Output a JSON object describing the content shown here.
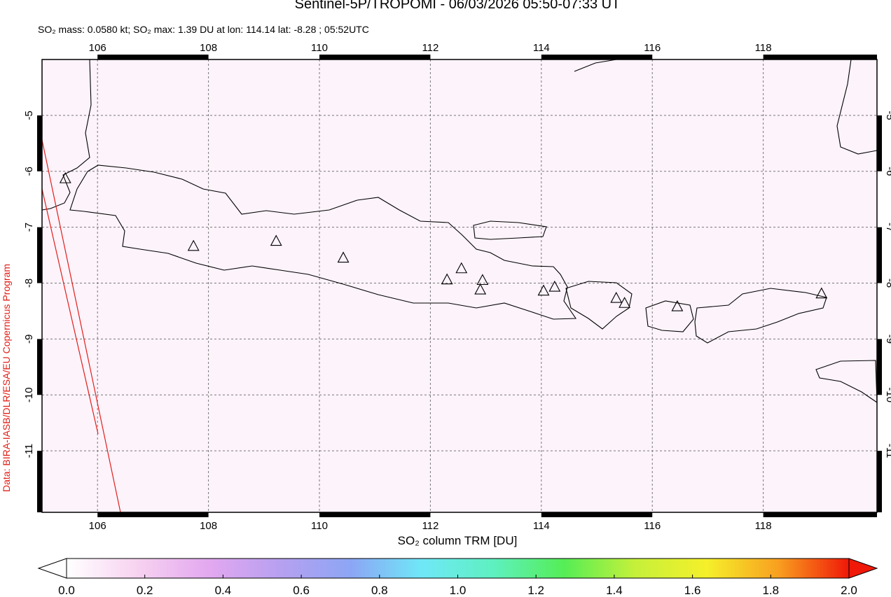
{
  "chart_data": {
    "type": "map",
    "title": "Sentinel-5P/TROPOMI - 06/03/2026 05:50-07:33 UT",
    "subtitle": "SO₂ mass: 0.0580 kt; SO₂ max: 1.39 DU at lon: 114.14 lat: -8.28 ; 05:52UTC",
    "credit": "Data: BIRA-IASB/DLR/ESA/EU Copernicus Program",
    "xlim": [
      105.0,
      120.05
    ],
    "ylim": [
      -12.1,
      -4.0
    ],
    "xticks": [
      106,
      108,
      110,
      112,
      114,
      116,
      118
    ],
    "yticks": [
      -5,
      -6,
      -7,
      -8,
      -9,
      -10,
      -11
    ],
    "grid": true,
    "volcanoes": {
      "lon": [
        105.42,
        107.73,
        109.22,
        110.43,
        112.3,
        112.56,
        112.94,
        112.9,
        114.04,
        114.24,
        115.35,
        115.5,
        116.45,
        119.05
      ],
      "lat": [
        -6.13,
        -7.34,
        -7.25,
        -7.55,
        -7.94,
        -7.74,
        -7.95,
        -8.12,
        -8.14,
        -8.07,
        -8.27,
        -8.36,
        -8.42,
        -8.19
      ]
    },
    "colorbar": {
      "label": "SO₂ column TRM [DU]",
      "lim": [
        0.0,
        2.0
      ],
      "ticks": [
        {
          "value": 0.0,
          "label": "0.0"
        },
        0.2,
        0.4,
        0.6,
        0.8,
        {
          "value": 1.0,
          "label": "1.0"
        },
        1.2,
        1.4,
        1.6,
        1.8,
        {
          "value": 2.0,
          "label": "2.0"
        }
      ],
      "colors": [
        "#ffffff",
        "#f7d2f0",
        "#e3a8f0",
        "#b7a0f0",
        "#8ca6f5",
        "#6fe8f7",
        "#5ef0c0",
        "#55ee55",
        "#c6f03a",
        "#f5f02a",
        "#f8a020",
        "#f01808"
      ]
    }
  }
}
